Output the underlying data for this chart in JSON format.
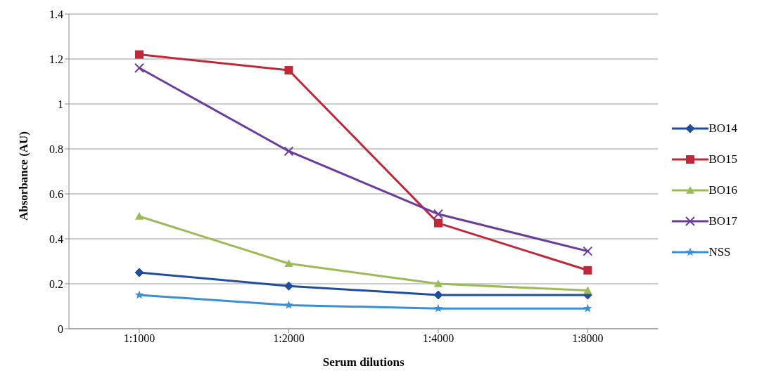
{
  "chart_data": {
    "type": "line",
    "xlabel": "Serum dilutions",
    "ylabel": "Absorbance (AU)",
    "categories": [
      "1:1000",
      "1:2000",
      "1:4000",
      "1:8000"
    ],
    "series": [
      {
        "name": "BO14",
        "color": "#1f4e9c",
        "marker": "diamond",
        "values": [
          0.25,
          0.19,
          0.15,
          0.15
        ]
      },
      {
        "name": "BO15",
        "color": "#c0283a",
        "marker": "square",
        "values": [
          1.22,
          1.15,
          0.47,
          0.26
        ]
      },
      {
        "name": "BO16",
        "color": "#9bbb59",
        "marker": "triangle",
        "values": [
          0.5,
          0.29,
          0.2,
          0.17
        ]
      },
      {
        "name": "BO17",
        "color": "#6a3d9a",
        "marker": "cross",
        "values": [
          1.16,
          0.79,
          0.51,
          0.345
        ]
      },
      {
        "name": "NSS",
        "color": "#3b8fd4",
        "marker": "star",
        "values": [
          0.15,
          0.105,
          0.09,
          0.09
        ]
      }
    ],
    "ylim": [
      0,
      1.4
    ],
    "yticks": [
      0,
      0.2,
      0.4,
      0.6,
      0.8,
      1,
      1.2,
      1.4
    ],
    "grid": "y",
    "legend": "right",
    "line_style": "solid"
  }
}
